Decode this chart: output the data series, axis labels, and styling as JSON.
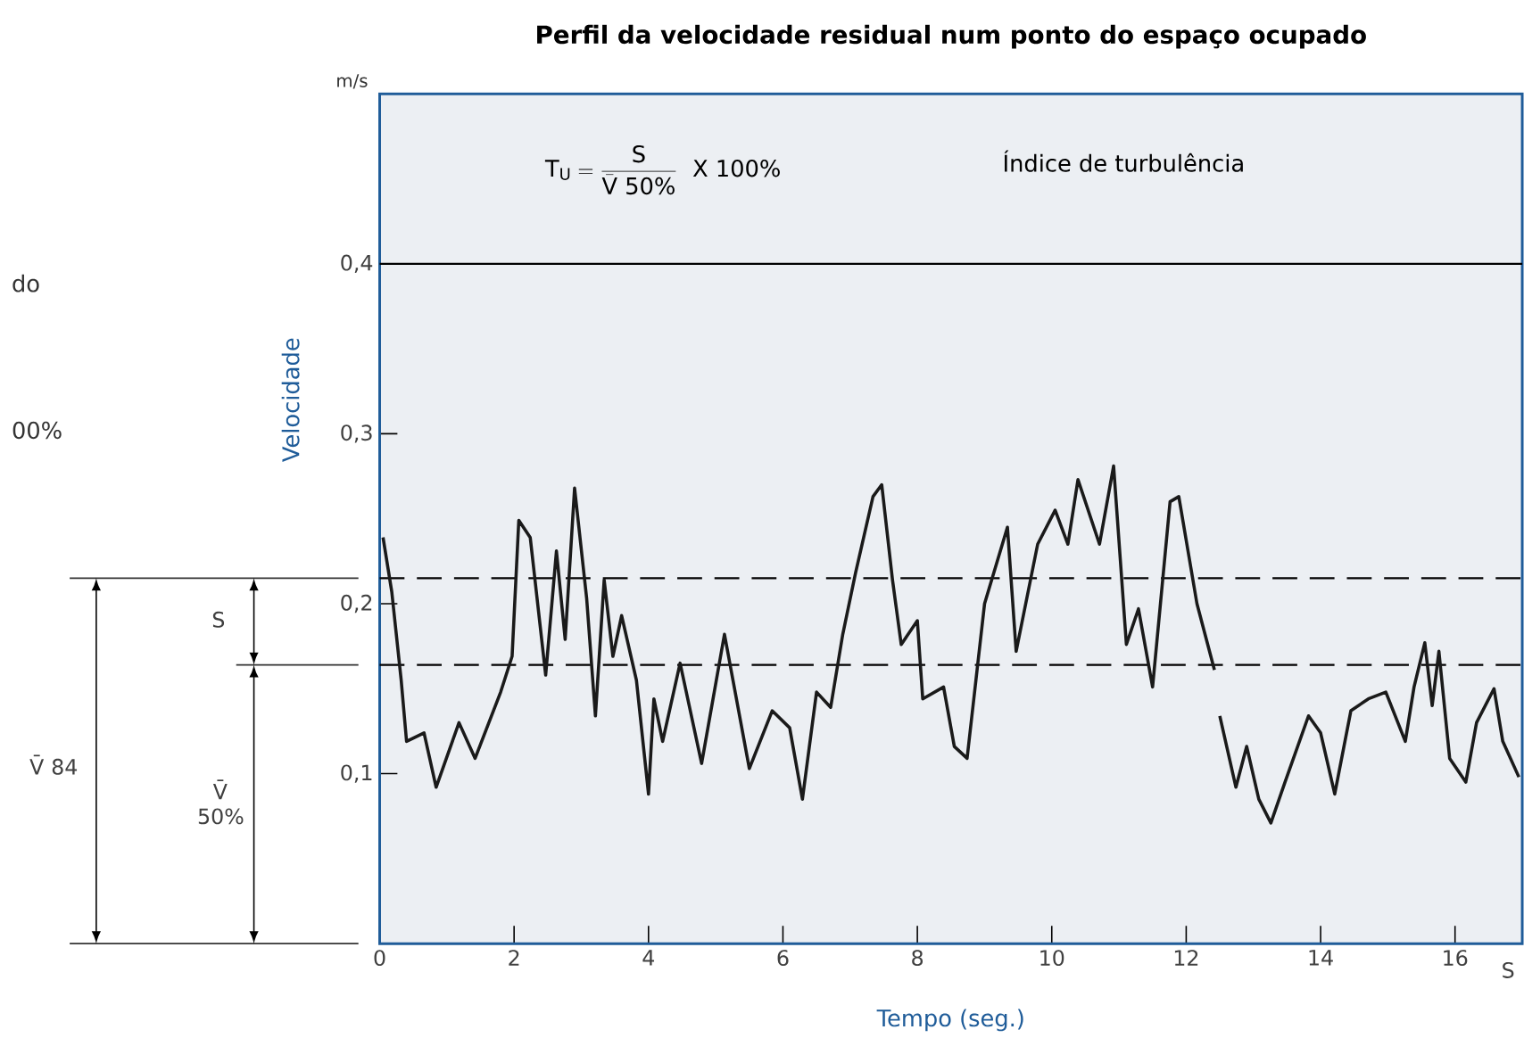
{
  "chart_data": {
    "type": "line",
    "title": "Perfil da velocidade residual num ponto do espaço ocupado",
    "xlabel": "Tempo (seg.)",
    "ylabel": "Velocidade",
    "x": [
      0.05,
      0.18,
      0.32,
      0.4,
      0.66,
      0.84,
      1.18,
      1.42,
      1.8,
      1.97,
      2.07,
      2.24,
      2.47,
      2.63,
      2.76,
      2.9,
      3.08,
      3.21,
      3.34,
      3.47,
      3.6,
      3.82,
      4.0,
      4.08,
      4.21,
      4.47,
      4.79,
      5.13,
      5.5,
      5.84,
      6.1,
      6.29,
      6.5,
      6.71,
      6.89,
      7.08,
      7.34,
      7.47,
      7.63,
      7.76,
      8.0,
      8.08,
      8.39,
      8.55,
      8.74,
      9.0,
      9.34,
      9.47,
      9.79,
      10.05,
      10.24,
      10.39,
      10.71,
      10.92,
      11.11,
      11.29,
      11.5,
      11.76,
      11.89,
      12.16,
      12.42,
      12.49,
      12.5,
      12.74,
      12.9,
      13.08,
      13.26,
      13.47,
      13.82,
      14.0,
      14.21,
      14.45,
      14.71,
      14.97,
      15.26,
      15.39,
      15.55,
      15.66,
      15.76,
      15.92,
      16.16,
      16.32,
      16.58,
      16.71,
      16.95
    ],
    "series": [
      {
        "color": "#1a1a1a",
        "values": [
          0.239,
          0.207,
          0.155,
          0.119,
          0.124,
          0.092,
          0.13,
          0.109,
          0.148,
          0.169,
          0.249,
          0.239,
          0.158,
          0.231,
          0.179,
          0.268,
          0.203,
          0.134,
          0.214,
          0.169,
          0.193,
          0.155,
          0.088,
          0.144,
          0.119,
          0.165,
          0.106,
          0.182,
          0.103,
          0.137,
          0.127,
          0.085,
          0.148,
          0.139,
          0.182,
          0.218,
          0.263,
          0.27,
          0.214,
          0.176,
          0.19,
          0.144,
          0.151,
          0.116,
          0.109,
          0.2,
          0.245,
          0.172,
          0.235,
          0.255,
          0.235,
          0.273,
          0.235,
          0.281,
          0.176,
          0.197,
          0.151,
          0.26,
          0.263,
          0.2,
          0.161,
          null,
          0.134,
          0.092,
          0.116,
          0.085,
          0.071,
          0.095,
          0.134,
          0.124,
          0.088,
          0.137,
          0.144,
          0.148,
          0.119,
          0.151,
          0.177,
          0.14,
          0.172,
          0.109,
          0.095,
          0.13,
          0.15,
          0.119,
          0.098
        ]
      }
    ],
    "xlim": [
      0,
      17
    ],
    "ylim": [
      0,
      0.5
    ],
    "xticks": [
      0,
      2,
      4,
      6,
      8,
      10,
      12,
      14,
      16
    ],
    "yticks": [
      {
        "value": 0.1,
        "label": "0,1"
      },
      {
        "value": 0.2,
        "label": "0,2"
      },
      {
        "value": 0.3,
        "label": "0,3"
      },
      {
        "value": 0.4,
        "label": "0,4"
      }
    ],
    "ref_lines": [
      {
        "axis": "y",
        "value": 0.4,
        "line_style": "solid"
      },
      {
        "axis": "y",
        "value": 0.215,
        "line_style": "dashed"
      },
      {
        "axis": "y",
        "value": 0.164,
        "line_style": "dashed"
      }
    ],
    "annotations": [
      "Índice de turbulência",
      "\\mathrm{T}_{\\mathrm{U}} = \\frac{\\mathrm{S}}{\\bar{\\mathrm{V}}\\ \\mathrm{50\\%}}\\ \\ \\mathrm{X\\ 100\\%}",
      "m/s",
      "S",
      "S",
      "V̄ 84",
      "V̄ 50%",
      "do",
      "00%"
    ],
    "grid": false,
    "marker": "none",
    "line_style": "solid"
  }
}
